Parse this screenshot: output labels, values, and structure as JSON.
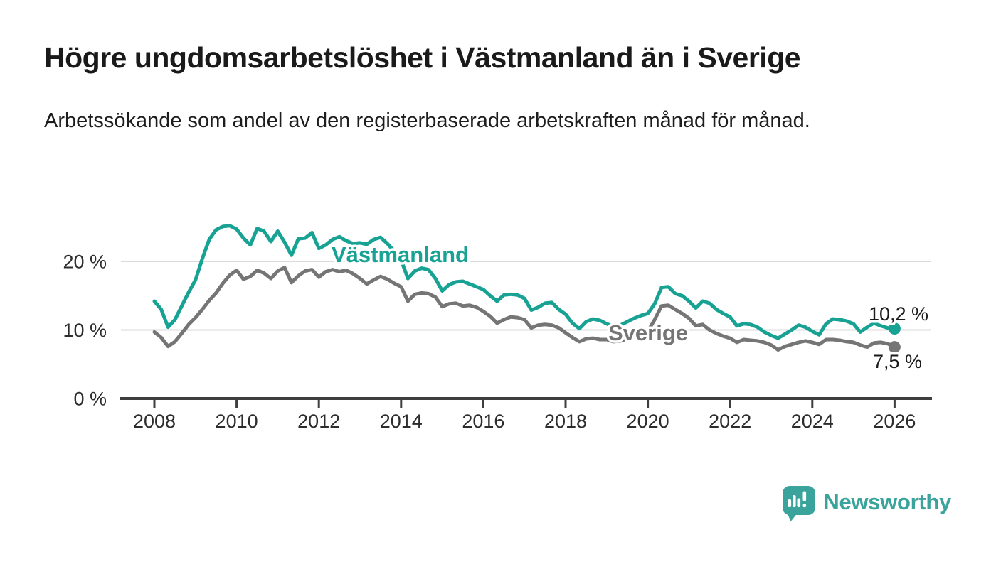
{
  "header": {
    "title": "Högre ungdomsarbetslöshet i Västmanland än i Sverige",
    "subtitle": "Arbetssökande som andel av den registerbaserade arbetskraften månad för månad."
  },
  "colors": {
    "vastmanland_teal": "#17a294",
    "sverige_gray": "#757575",
    "grid": "#dadada",
    "axis": "#3f3f3f",
    "tick_text": "#2d2d2d",
    "value_text": "#1a1a1a",
    "logo_teal": "#3aa39c",
    "background": "#ffffff"
  },
  "chart_data": {
    "type": "line",
    "title": "Högre ungdomsarbetslöshet i Västmanland än i Sverige",
    "subtitle": "Arbetssökande som andel av den registerbaserade arbetskraften månad för månad.",
    "unit": "%",
    "x_start": 2008.0,
    "x_step": 0.166667,
    "xlim": [
      2007.2,
      2026.9
    ],
    "ylim": [
      0,
      27
    ],
    "grid": true,
    "legend_position": "inline-labels",
    "x_ticks": [
      2008,
      2010,
      2012,
      2014,
      2016,
      2018,
      2020,
      2022,
      2024,
      2026
    ],
    "y_ticks": [
      {
        "value": 20,
        "label": "20 %"
      },
      {
        "value": 10,
        "label": "10 %"
      },
      {
        "value": 0,
        "label": "0 %"
      }
    ],
    "series": [
      {
        "name": "Västmanland",
        "color": "#17a294",
        "end_label": "10,2 %",
        "end_value": 10.2,
        "values": [
          14.2,
          13.0,
          10.4,
          11.5,
          13.5,
          15.5,
          17.3,
          20.4,
          23.2,
          24.6,
          25.1,
          25.2,
          24.7,
          23.4,
          22.4,
          24.8,
          24.4,
          22.9,
          24.4,
          22.8,
          20.9,
          23.3,
          23.4,
          24.2,
          21.9,
          22.4,
          23.2,
          23.6,
          23.0,
          22.6,
          22.7,
          22.5,
          23.2,
          23.5,
          22.6,
          21.5,
          20.2,
          17.5,
          18.6,
          19.0,
          18.8,
          17.5,
          15.7,
          16.6,
          17.0,
          17.1,
          16.7,
          16.3,
          15.9,
          15.0,
          14.2,
          15.1,
          15.2,
          15.1,
          14.6,
          12.9,
          13.3,
          13.9,
          14.0,
          13.0,
          12.3,
          11.0,
          10.2,
          11.2,
          11.6,
          11.4,
          10.9,
          10.5,
          10.7,
          11.2,
          11.7,
          12.1,
          12.4,
          13.8,
          16.2,
          16.3,
          15.3,
          15.0,
          14.2,
          13.2,
          14.2,
          13.9,
          13.0,
          12.4,
          11.9,
          10.6,
          10.9,
          10.8,
          10.4,
          9.7,
          9.2,
          8.8,
          9.4,
          10.0,
          10.7,
          10.4,
          9.8,
          9.3,
          10.9,
          11.6,
          11.5,
          11.3,
          10.9,
          9.7,
          10.4,
          11.0,
          10.6,
          10.3,
          10.2
        ]
      },
      {
        "name": "Sverige",
        "color": "#757575",
        "end_label": "7,5 %",
        "end_value": 7.5,
        "values": [
          9.7,
          8.9,
          7.6,
          8.3,
          9.5,
          10.8,
          11.8,
          13.0,
          14.3,
          15.4,
          16.8,
          18.0,
          18.7,
          17.4,
          17.8,
          18.7,
          18.3,
          17.5,
          18.6,
          19.1,
          16.9,
          17.9,
          18.6,
          18.8,
          17.7,
          18.5,
          18.8,
          18.5,
          18.7,
          18.2,
          17.5,
          16.7,
          17.3,
          17.8,
          17.4,
          16.8,
          16.3,
          14.2,
          15.2,
          15.4,
          15.3,
          14.8,
          13.4,
          13.8,
          13.9,
          13.5,
          13.6,
          13.3,
          12.7,
          12.0,
          11.0,
          11.5,
          11.9,
          11.8,
          11.5,
          10.3,
          10.7,
          10.8,
          10.7,
          10.3,
          9.6,
          8.9,
          8.3,
          8.7,
          8.8,
          8.6,
          8.6,
          8.3,
          8.4,
          8.7,
          9.0,
          9.4,
          9.8,
          11.5,
          13.5,
          13.6,
          13.0,
          12.4,
          11.7,
          10.6,
          10.8,
          10.0,
          9.5,
          9.1,
          8.8,
          8.2,
          8.6,
          8.5,
          8.4,
          8.2,
          7.8,
          7.1,
          7.6,
          7.9,
          8.2,
          8.4,
          8.2,
          7.9,
          8.6,
          8.6,
          8.5,
          8.3,
          8.2,
          7.8,
          7.5,
          8.1,
          8.2,
          8.0,
          7.5
        ]
      }
    ]
  },
  "branding": {
    "name": "Newsworthy"
  }
}
